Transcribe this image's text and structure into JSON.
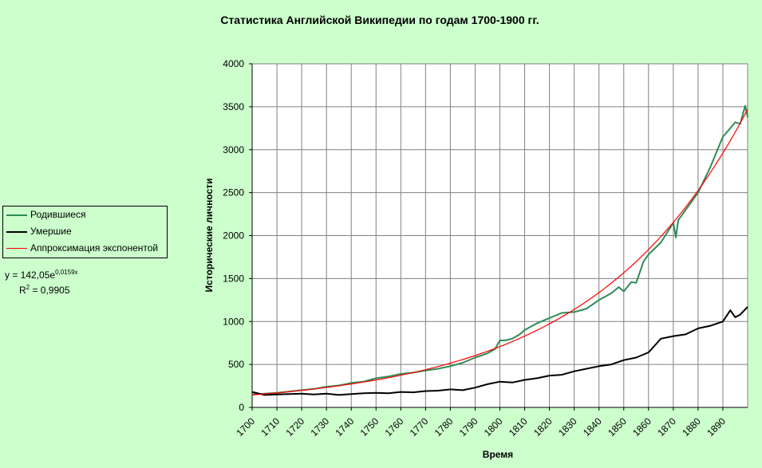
{
  "chart_data": {
    "type": "line",
    "title": "Статистика Английской Википедии по годам 1700-1900 гг.",
    "xlabel": "Время",
    "ylabel": "Исторические личности",
    "xlim": [
      1700,
      1900
    ],
    "ylim": [
      0,
      4000
    ],
    "yticks": [
      0,
      500,
      1000,
      1500,
      2000,
      2500,
      3000,
      3500,
      4000
    ],
    "xticks": [
      1700,
      1710,
      1720,
      1730,
      1740,
      1750,
      1760,
      1770,
      1780,
      1790,
      1800,
      1810,
      1820,
      1830,
      1840,
      1850,
      1860,
      1870,
      1880,
      1890
    ],
    "grid": true,
    "legend_position": "left",
    "series": [
      {
        "name": "Родившиеся",
        "color": "#2e8b57",
        "x": [
          1700,
          1705,
          1710,
          1715,
          1720,
          1725,
          1730,
          1735,
          1740,
          1745,
          1750,
          1755,
          1760,
          1765,
          1770,
          1775,
          1780,
          1785,
          1790,
          1795,
          1798,
          1800,
          1802,
          1805,
          1808,
          1810,
          1815,
          1820,
          1825,
          1830,
          1835,
          1840,
          1845,
          1848,
          1850,
          1853,
          1855,
          1858,
          1860,
          1865,
          1870,
          1871,
          1872,
          1875,
          1880,
          1885,
          1890,
          1893,
          1895,
          1897,
          1899,
          1900
        ],
        "y": [
          150,
          160,
          170,
          185,
          200,
          215,
          240,
          255,
          285,
          300,
          340,
          360,
          390,
          405,
          430,
          450,
          480,
          520,
          580,
          630,
          680,
          780,
          780,
          800,
          850,
          900,
          980,
          1040,
          1100,
          1110,
          1150,
          1250,
          1330,
          1400,
          1350,
          1460,
          1450,
          1700,
          1780,
          1920,
          2150,
          1980,
          2180,
          2300,
          2500,
          2800,
          3150,
          3250,
          3320,
          3300,
          3510,
          3380
        ]
      },
      {
        "name": "Умершие",
        "color": "#000000",
        "x": [
          1700,
          1705,
          1710,
          1715,
          1720,
          1725,
          1730,
          1735,
          1740,
          1745,
          1750,
          1755,
          1760,
          1765,
          1770,
          1775,
          1780,
          1785,
          1790,
          1795,
          1800,
          1805,
          1810,
          1815,
          1820,
          1825,
          1830,
          1835,
          1840,
          1845,
          1850,
          1855,
          1860,
          1865,
          1870,
          1875,
          1880,
          1885,
          1890,
          1893,
          1895,
          1897,
          1900
        ],
        "y": [
          180,
          145,
          150,
          155,
          160,
          150,
          160,
          145,
          155,
          165,
          170,
          165,
          180,
          175,
          190,
          195,
          210,
          200,
          230,
          270,
          300,
          290,
          320,
          340,
          370,
          380,
          420,
          450,
          480,
          500,
          550,
          580,
          640,
          800,
          830,
          850,
          920,
          950,
          1000,
          1130,
          1050,
          1080,
          1170
        ]
      },
      {
        "name": "Аппроксимация экспонентой",
        "color": "#ff0000",
        "equation": "y = 142,05e",
        "equation_exponent": "0,0159x",
        "r2_label": "R",
        "r2_value": " = 0,9905",
        "a": 142.05,
        "b": 0.0159
      }
    ]
  }
}
